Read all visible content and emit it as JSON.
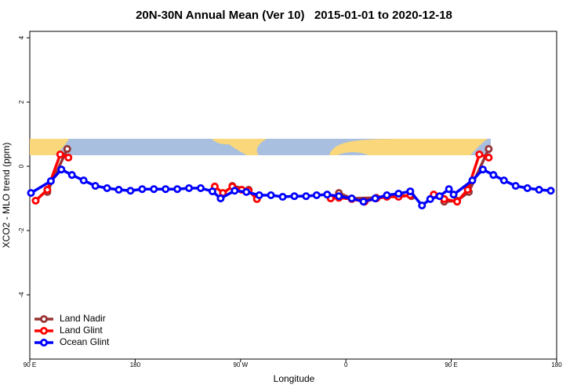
{
  "chart_data": {
    "type": "line",
    "title": "20N-30N Annual Mean (Ver 10)   2015-01-01 to 2020-12-18",
    "x_label": "Longitude",
    "y_label": "XCO2 - MLO trend (ppm)",
    "xlim": [
      90,
      540
    ],
    "ylim": [
      -6,
      4.2
    ],
    "xticks": [
      {
        "value": 90,
        "label": "90 E"
      },
      180,
      {
        "value": 270,
        "label": "90 W"
      },
      {
        "value": 360,
        "label": "0"
      },
      {
        "value": 450,
        "label": "90 E"
      },
      {
        "value": 540,
        "label": "180"
      }
    ],
    "yticks": [
      -4,
      -2,
      0,
      2,
      4
    ],
    "legend": "bottom-left",
    "series": [
      {
        "name": "Land Nadir",
        "color": "#993333",
        "x": [
          105,
          122,
          null,
          263,
          277,
          null,
          354,
          365,
          386,
          405,
          416,
          null,
          444,
          455,
          465,
          482
        ],
        "values": [
          -0.8,
          0.54,
          null,
          -0.61,
          -0.73,
          null,
          -0.83,
          -1.0,
          -0.98,
          -0.9,
          -0.93,
          null,
          -1.1,
          -1.07,
          -0.8,
          0.54
        ]
      },
      {
        "name": "Land Glint",
        "color": "#ff0000",
        "x": [
          95,
          105,
          116,
          123,
          null,
          248,
          255,
          263,
          271,
          277,
          284,
          null,
          347,
          354,
          365,
          376,
          386,
          395,
          405,
          415,
          null,
          435,
          444,
          455,
          464,
          474,
          482
        ],
        "values": [
          -1.07,
          -0.73,
          0.37,
          0.27,
          null,
          -0.63,
          -0.83,
          -0.63,
          -0.73,
          -0.76,
          -1.02,
          null,
          -1.0,
          -0.98,
          -1.02,
          -1.1,
          -1.0,
          -0.95,
          -0.95,
          -0.9,
          null,
          -0.88,
          -1.02,
          -1.1,
          -0.73,
          0.37,
          0.27
        ]
      },
      {
        "name": "Ocean Glint",
        "color": "#0000ff",
        "x": [
          91,
          108,
          117,
          126,
          136,
          146,
          156,
          166,
          176,
          186,
          196,
          206,
          216,
          226,
          236,
          246,
          253,
          265,
          275,
          286,
          296,
          306,
          316,
          326,
          335,
          344,
          354,
          365,
          375,
          385,
          395,
          405,
          415,
          425,
          432,
          440,
          448,
          452,
          468,
          477,
          486,
          495,
          505,
          515,
          525,
          535
        ],
        "values": [
          -0.83,
          -0.46,
          -0.1,
          -0.27,
          -0.44,
          -0.61,
          -0.68,
          -0.73,
          -0.76,
          -0.71,
          -0.71,
          -0.71,
          -0.71,
          -0.68,
          -0.68,
          -0.78,
          -1.0,
          -0.76,
          -0.8,
          -0.9,
          -0.9,
          -0.95,
          -0.93,
          -0.93,
          -0.9,
          -0.88,
          -0.93,
          -1.0,
          -1.1,
          -1.0,
          -0.9,
          -0.85,
          -0.78,
          -1.22,
          -1.02,
          -0.93,
          -0.71,
          -0.88,
          -0.44,
          -0.1,
          -0.27,
          -0.44,
          -0.61,
          -0.68,
          -0.73,
          -0.76
        ]
      }
    ]
  }
}
